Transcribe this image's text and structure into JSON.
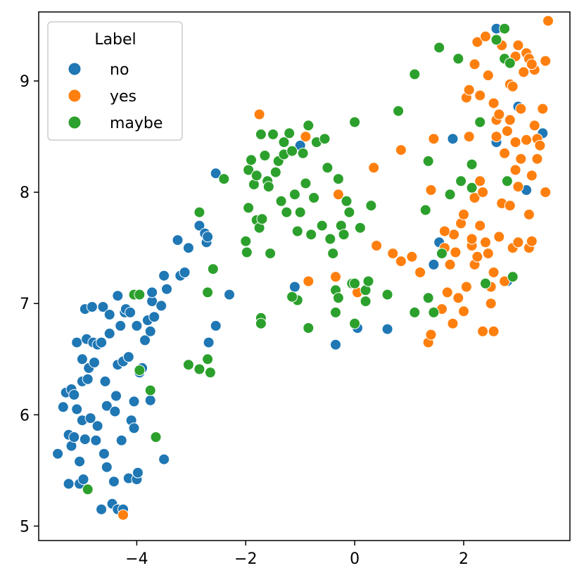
{
  "chart_data": {
    "type": "scatter",
    "title": "",
    "xlabel": "",
    "ylabel": "",
    "xlim": [
      -5.8,
      3.95
    ],
    "ylim": [
      4.87,
      9.62
    ],
    "xticks": [
      -4,
      -2,
      0,
      2
    ],
    "yticks": [
      5,
      6,
      7,
      8,
      9
    ],
    "xtick_labels": [
      "−4",
      "−2",
      "0",
      "2"
    ],
    "ytick_labels": [
      "5",
      "6",
      "7",
      "8",
      "9"
    ],
    "grid": false,
    "legend": {
      "title": "Label",
      "position": "top-left"
    },
    "series": [
      {
        "name": "no",
        "color": "#1f77b4",
        "points": [
          [
            -5.45,
            5.65
          ],
          [
            -5.35,
            6.07
          ],
          [
            -5.3,
            6.2
          ],
          [
            -5.25,
            5.38
          ],
          [
            -5.25,
            5.82
          ],
          [
            -5.2,
            6.23
          ],
          [
            -5.2,
            5.72
          ],
          [
            -5.15,
            6.18
          ],
          [
            -5.15,
            5.8
          ],
          [
            -5.1,
            6.65
          ],
          [
            -5.1,
            6.05
          ],
          [
            -5.05,
            5.58
          ],
          [
            -5.05,
            5.38
          ],
          [
            -5.0,
            6.5
          ],
          [
            -5.0,
            6.3
          ],
          [
            -5.0,
            5.95
          ],
          [
            -4.98,
            5.42
          ],
          [
            -4.95,
            5.78
          ],
          [
            -4.95,
            6.95
          ],
          [
            -4.92,
            6.68
          ],
          [
            -4.9,
            6.32
          ],
          [
            -4.88,
            6.42
          ],
          [
            -4.85,
            5.97
          ],
          [
            -4.82,
            6.97
          ],
          [
            -4.8,
            6.65
          ],
          [
            -4.78,
            6.47
          ],
          [
            -4.75,
            5.77
          ],
          [
            -4.72,
            5.9
          ],
          [
            -4.72,
            6.63
          ],
          [
            -4.65,
            5.15
          ],
          [
            -4.65,
            6.65
          ],
          [
            -4.62,
            6.97
          ],
          [
            -4.6,
            5.65
          ],
          [
            -4.58,
            6.3
          ],
          [
            -4.55,
            6.08
          ],
          [
            -4.55,
            5.53
          ],
          [
            -4.5,
            6.9
          ],
          [
            -4.5,
            6.73
          ],
          [
            -4.45,
            5.2
          ],
          [
            -4.42,
            5.4
          ],
          [
            -4.4,
            6.03
          ],
          [
            -4.38,
            6.17
          ],
          [
            -4.35,
            5.15
          ],
          [
            -4.35,
            6.45
          ],
          [
            -4.35,
            7.07
          ],
          [
            -4.3,
            6.8
          ],
          [
            -4.28,
            5.77
          ],
          [
            -4.25,
            6.48
          ],
          [
            -4.25,
            5.15
          ],
          [
            -4.22,
            6.92
          ],
          [
            -4.2,
            6.95
          ],
          [
            -4.15,
            5.43
          ],
          [
            -4.15,
            6.52
          ],
          [
            -4.12,
            6.92
          ],
          [
            -4.1,
            5.95
          ],
          [
            -4.05,
            5.88
          ],
          [
            -4.05,
            6.12
          ],
          [
            -4.0,
            6.8
          ],
          [
            -4.0,
            5.42
          ],
          [
            -3.98,
            5.48
          ],
          [
            -3.95,
            6.38
          ],
          [
            -3.9,
            6.42
          ],
          [
            -3.85,
            6.67
          ],
          [
            -3.8,
            6.85
          ],
          [
            -3.75,
            6.75
          ],
          [
            -3.75,
            6.13
          ],
          [
            -3.72,
            7.02
          ],
          [
            -3.72,
            7.1
          ],
          [
            -3.68,
            6.88
          ],
          [
            -3.55,
            6.98
          ],
          [
            -3.5,
            5.6
          ],
          [
            -3.5,
            7.25
          ],
          [
            -3.45,
            7.13
          ],
          [
            -3.25,
            7.57
          ],
          [
            -3.2,
            7.25
          ],
          [
            -3.12,
            7.28
          ],
          [
            -3.05,
            7.5
          ],
          [
            -2.85,
            7.7
          ],
          [
            -2.75,
            7.63
          ],
          [
            -2.72,
            7.55
          ],
          [
            -2.7,
            7.6
          ],
          [
            -2.68,
            6.65
          ],
          [
            -2.55,
            8.17
          ],
          [
            -2.55,
            6.8
          ],
          [
            -2.3,
            7.08
          ],
          [
            -1.0,
            8.42
          ],
          [
            -1.1,
            7.15
          ],
          [
            -0.35,
            6.63
          ],
          [
            0.05,
            6.78
          ],
          [
            0.6,
            6.77
          ],
          [
            1.45,
            7.35
          ],
          [
            1.55,
            7.55
          ],
          [
            1.8,
            8.48
          ],
          [
            2.6,
            8.45
          ],
          [
            2.6,
            9.47
          ],
          [
            2.8,
            7.2
          ],
          [
            3.0,
            8.77
          ],
          [
            3.15,
            8.02
          ],
          [
            3.45,
            8.53
          ]
        ]
      },
      {
        "name": "yes",
        "color": "#ff7f0e",
        "points": [
          [
            -4.25,
            5.1
          ],
          [
            -1.75,
            8.7
          ],
          [
            -0.9,
            8.5
          ],
          [
            -0.85,
            7.2
          ],
          [
            -0.35,
            7.24
          ],
          [
            -0.3,
            7.98
          ],
          [
            0.05,
            7.1
          ],
          [
            0.35,
            8.22
          ],
          [
            0.4,
            7.52
          ],
          [
            0.7,
            7.45
          ],
          [
            0.85,
            7.38
          ],
          [
            0.85,
            8.38
          ],
          [
            1.05,
            7.42
          ],
          [
            1.2,
            7.28
          ],
          [
            1.35,
            6.65
          ],
          [
            1.4,
            6.72
          ],
          [
            1.45,
            8.48
          ],
          [
            1.4,
            8.02
          ],
          [
            1.6,
            6.95
          ],
          [
            1.65,
            7.5
          ],
          [
            1.7,
            7.1
          ],
          [
            1.75,
            7.35
          ],
          [
            1.8,
            6.82
          ],
          [
            1.82,
            7.62
          ],
          [
            1.85,
            7.46
          ],
          [
            1.9,
            7.05
          ],
          [
            1.95,
            7.72
          ],
          [
            2.0,
            6.93
          ],
          [
            2.0,
            7.8
          ],
          [
            2.05,
            7.15
          ],
          [
            2.05,
            8.85
          ],
          [
            2.1,
            8.92
          ],
          [
            2.15,
            7.52
          ],
          [
            2.15,
            7.58
          ],
          [
            2.2,
            7.95
          ],
          [
            2.2,
            7.35
          ],
          [
            2.25,
            7.42
          ],
          [
            2.3,
            8.1
          ],
          [
            2.3,
            7.7
          ],
          [
            2.35,
            8.0
          ],
          [
            2.4,
            7.55
          ],
          [
            2.45,
            7.45
          ],
          [
            2.5,
            7.15
          ],
          [
            2.5,
            7.0
          ],
          [
            2.55,
            7.28
          ],
          [
            2.6,
            8.65
          ],
          [
            2.6,
            8.5
          ],
          [
            2.65,
            8.7
          ],
          [
            2.65,
            7.6
          ],
          [
            2.7,
            7.9
          ],
          [
            2.75,
            8.35
          ],
          [
            2.75,
            7.2
          ],
          [
            2.8,
            8.55
          ],
          [
            2.85,
            7.88
          ],
          [
            2.85,
            8.65
          ],
          [
            2.9,
            7.5
          ],
          [
            2.95,
            8.2
          ],
          [
            2.95,
            8.45
          ],
          [
            3.0,
            8.05
          ],
          [
            3.0,
            7.55
          ],
          [
            3.05,
            8.3
          ],
          [
            3.05,
            8.75
          ],
          [
            3.1,
            9.08
          ],
          [
            3.15,
            9.25
          ],
          [
            3.15,
            8.47
          ],
          [
            3.2,
            7.8
          ],
          [
            3.2,
            7.5
          ],
          [
            3.25,
            7.56
          ],
          [
            3.25,
            8.15
          ],
          [
            3.3,
            9.1
          ],
          [
            3.35,
            8.48
          ],
          [
            3.35,
            8.3
          ],
          [
            3.4,
            8.42
          ],
          [
            3.45,
            8.75
          ],
          [
            3.5,
            9.18
          ],
          [
            3.5,
            8.0
          ],
          [
            3.55,
            9.54
          ],
          [
            2.2,
            9.15
          ],
          [
            2.25,
            9.35
          ],
          [
            2.3,
            8.87
          ],
          [
            2.45,
            9.05
          ],
          [
            2.4,
            9.4
          ],
          [
            2.55,
            8.8
          ],
          [
            2.7,
            9.32
          ],
          [
            2.85,
            8.97
          ],
          [
            2.95,
            9.22
          ],
          [
            3.0,
            9.32
          ],
          [
            3.2,
            9.2
          ],
          [
            3.25,
            9.15
          ],
          [
            3.3,
            8.6
          ],
          [
            2.35,
            6.75
          ],
          [
            2.55,
            6.75
          ],
          [
            2.1,
            8.5
          ],
          [
            2.9,
            8.95
          ],
          [
            1.65,
            7.65
          ]
        ]
      },
      {
        "name": "maybe",
        "color": "#2ca02c",
        "points": [
          [
            -4.9,
            5.33
          ],
          [
            -3.95,
            6.4
          ],
          [
            -4.05,
            7.08
          ],
          [
            -3.95,
            7.08
          ],
          [
            -3.75,
            6.22
          ],
          [
            -3.65,
            5.8
          ],
          [
            -3.05,
            6.45
          ],
          [
            -2.85,
            6.41
          ],
          [
            -2.85,
            7.82
          ],
          [
            -2.7,
            6.5
          ],
          [
            -2.65,
            6.38
          ],
          [
            -2.6,
            7.31
          ],
          [
            -2.7,
            7.1
          ],
          [
            -2.4,
            8.12
          ],
          [
            -2.0,
            7.56
          ],
          [
            -1.98,
            7.46
          ],
          [
            -1.95,
            7.86
          ],
          [
            -1.95,
            8.2
          ],
          [
            -1.9,
            8.29
          ],
          [
            -1.85,
            8.07
          ],
          [
            -1.8,
            7.75
          ],
          [
            -1.8,
            8.15
          ],
          [
            -1.75,
            7.68
          ],
          [
            -1.72,
            8.52
          ],
          [
            -1.7,
            7.76
          ],
          [
            -1.65,
            8.33
          ],
          [
            -1.6,
            8.1
          ],
          [
            -1.58,
            8.05
          ],
          [
            -1.55,
            7.45
          ],
          [
            -1.5,
            8.52
          ],
          [
            -1.45,
            8.18
          ],
          [
            -1.4,
            8.28
          ],
          [
            -1.35,
            7.92
          ],
          [
            -1.3,
            8.45
          ],
          [
            -1.3,
            8.34
          ],
          [
            -1.25,
            7.82
          ],
          [
            -1.2,
            8.53
          ],
          [
            -1.15,
            8.37
          ],
          [
            -1.1,
            7.98
          ],
          [
            -1.05,
            7.65
          ],
          [
            -1.0,
            7.82
          ],
          [
            -0.95,
            8.35
          ],
          [
            -0.9,
            8.08
          ],
          [
            -0.85,
            8.6
          ],
          [
            -0.8,
            7.62
          ],
          [
            -0.75,
            7.95
          ],
          [
            -0.7,
            8.45
          ],
          [
            -0.6,
            7.7
          ],
          [
            -0.55,
            8.48
          ],
          [
            -0.5,
            8.22
          ],
          [
            -0.45,
            7.58
          ],
          [
            -0.4,
            7.45
          ],
          [
            -0.35,
            7.12
          ],
          [
            -0.3,
            8.12
          ],
          [
            -0.25,
            7.7
          ],
          [
            -0.2,
            7.62
          ],
          [
            -0.15,
            7.92
          ],
          [
            -0.1,
            7.82
          ],
          [
            -0.05,
            7.18
          ],
          [
            0.0,
            7.18
          ],
          [
            0.0,
            8.63
          ],
          [
            0.1,
            7.68
          ],
          [
            0.2,
            7.02
          ],
          [
            0.2,
            7.12
          ],
          [
            0.25,
            7.2
          ],
          [
            0.3,
            7.88
          ],
          [
            0.6,
            7.08
          ],
          [
            0.8,
            8.73
          ],
          [
            1.1,
            6.92
          ],
          [
            1.1,
            9.06
          ],
          [
            1.3,
            7.84
          ],
          [
            1.35,
            8.28
          ],
          [
            1.35,
            7.05
          ],
          [
            1.45,
            6.92
          ],
          [
            1.55,
            9.3
          ],
          [
            1.6,
            7.45
          ],
          [
            1.75,
            7.98
          ],
          [
            1.9,
            9.2
          ],
          [
            1.95,
            8.1
          ],
          [
            2.15,
            8.04
          ],
          [
            2.15,
            8.25
          ],
          [
            2.3,
            8.63
          ],
          [
            2.4,
            7.18
          ],
          [
            2.6,
            9.37
          ],
          [
            2.75,
            9.2
          ],
          [
            2.75,
            9.47
          ],
          [
            2.8,
            8.1
          ],
          [
            2.85,
            9.16
          ],
          [
            2.9,
            7.24
          ],
          [
            -1.05,
            7.03
          ],
          [
            -1.15,
            7.06
          ],
          [
            -0.85,
            6.78
          ],
          [
            -0.35,
            6.92
          ],
          [
            0.0,
            6.82
          ],
          [
            -1.72,
            6.87
          ],
          [
            -1.72,
            6.82
          ],
          [
            -0.3,
            7.05
          ]
        ]
      }
    ]
  }
}
